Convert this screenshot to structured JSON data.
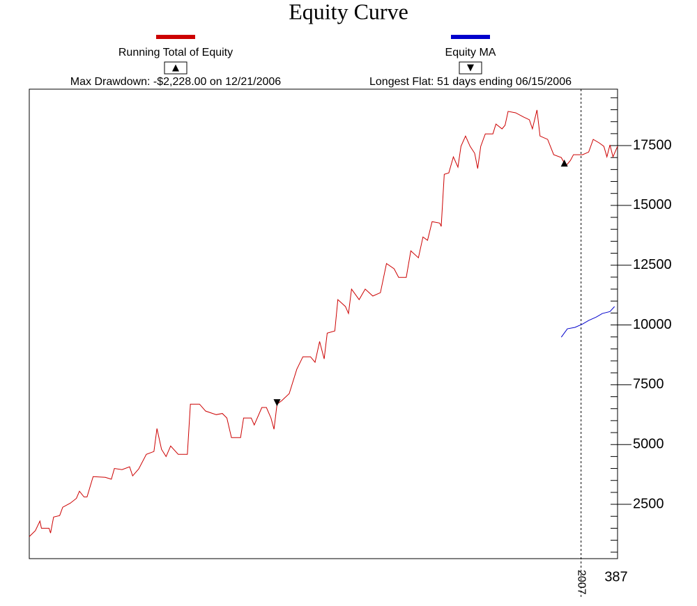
{
  "chart_data": {
    "type": "line",
    "title": "Equity Curve",
    "annotations": [
      "Max Drawdown: -$2,228.00 on 12/21/2006",
      "Longest Flat: 51 days ending 06/15/2006"
    ],
    "series": [
      {
        "name": "Running Total of Equity",
        "color": "#cc0000",
        "marker": "up",
        "x": [
          0,
          4,
          7,
          8,
          13,
          14,
          16,
          20,
          22,
          27,
          31,
          33,
          36,
          38,
          42,
          50,
          54,
          56,
          61,
          66,
          68,
          72,
          77,
          82,
          84,
          87,
          90,
          93,
          98,
          104,
          106,
          112,
          116,
          123,
          127,
          130,
          133,
          139,
          141,
          146,
          148,
          153,
          156,
          159,
          161,
          163,
          166,
          171,
          176,
          180,
          185,
          188,
          191,
          194,
          196,
          201,
          203,
          208,
          210,
          212,
          217,
          221,
          226,
          231,
          235,
          240,
          243,
          248,
          251,
          256,
          259,
          262,
          265,
          270,
          271,
          273,
          276,
          279,
          282,
          284,
          287,
          290,
          293,
          295,
          297,
          300,
          305,
          307,
          311,
          313,
          315,
          320,
          325,
          329,
          331,
          334,
          336,
          341,
          345,
          350,
          353,
          356,
          358,
          364,
          368,
          371,
          375,
          378,
          380,
          382,
          384,
          387
        ],
        "values": [
          1150,
          1400,
          1800,
          1500,
          1500,
          1300,
          1970,
          2030,
          2380,
          2550,
          2750,
          3050,
          2810,
          2810,
          3660,
          3630,
          3550,
          4000,
          3950,
          4070,
          3690,
          3980,
          4590,
          4710,
          5670,
          4800,
          4500,
          4940,
          4590,
          4590,
          6690,
          6690,
          6400,
          6250,
          6300,
          6110,
          5290,
          5290,
          6110,
          6110,
          5820,
          6550,
          6550,
          6110,
          5640,
          6690,
          6830,
          7130,
          8150,
          8670,
          8670,
          8440,
          9310,
          8580,
          9660,
          9750,
          11060,
          10770,
          10480,
          11500,
          11060,
          11500,
          11210,
          11350,
          12570,
          12350,
          11990,
          11990,
          13100,
          12810,
          13680,
          13540,
          14320,
          14260,
          14120,
          16300,
          16360,
          17030,
          16600,
          17470,
          17900,
          17470,
          17180,
          16540,
          17470,
          17990,
          17990,
          18400,
          18200,
          18350,
          18930,
          18870,
          18700,
          18580,
          18200,
          18990,
          17900,
          17760,
          17120,
          17000,
          16650,
          16880,
          17120,
          17120,
          17230,
          17760,
          17610,
          17470,
          17030,
          17530,
          17030,
          17470
        ]
      },
      {
        "name": "Equity MA",
        "color": "#0000cc",
        "marker": "down",
        "x": [
          350,
          354,
          359,
          364,
          368,
          373,
          377,
          382,
          385
        ],
        "values": [
          9490,
          9840,
          9900,
          10040,
          10190,
          10330,
          10480,
          10560,
          10770
        ]
      }
    ],
    "markers": [
      {
        "shape": "down",
        "x": 163,
        "y": 6750
      },
      {
        "shape": "up",
        "x": 352,
        "y": 16770
      }
    ],
    "xlim": [
      0,
      387
    ],
    "xticks": [
      {
        "value": 363,
        "label": "2007"
      },
      387
    ],
    "ylim": [
      230,
      19860
    ],
    "yticks": [
      2500,
      5000,
      7500,
      10000,
      12500,
      15000,
      17500
    ],
    "yminorticks": [
      500,
      1000,
      1500,
      2000,
      3000,
      3500,
      4000,
      4500,
      5500,
      6000,
      6500,
      7000,
      8000,
      8500,
      9000,
      9500,
      10500,
      11000,
      11500,
      12000,
      13000,
      13500,
      14000,
      14500,
      15500,
      16000,
      16500,
      17000,
      18000,
      18500,
      19000,
      19500
    ]
  }
}
